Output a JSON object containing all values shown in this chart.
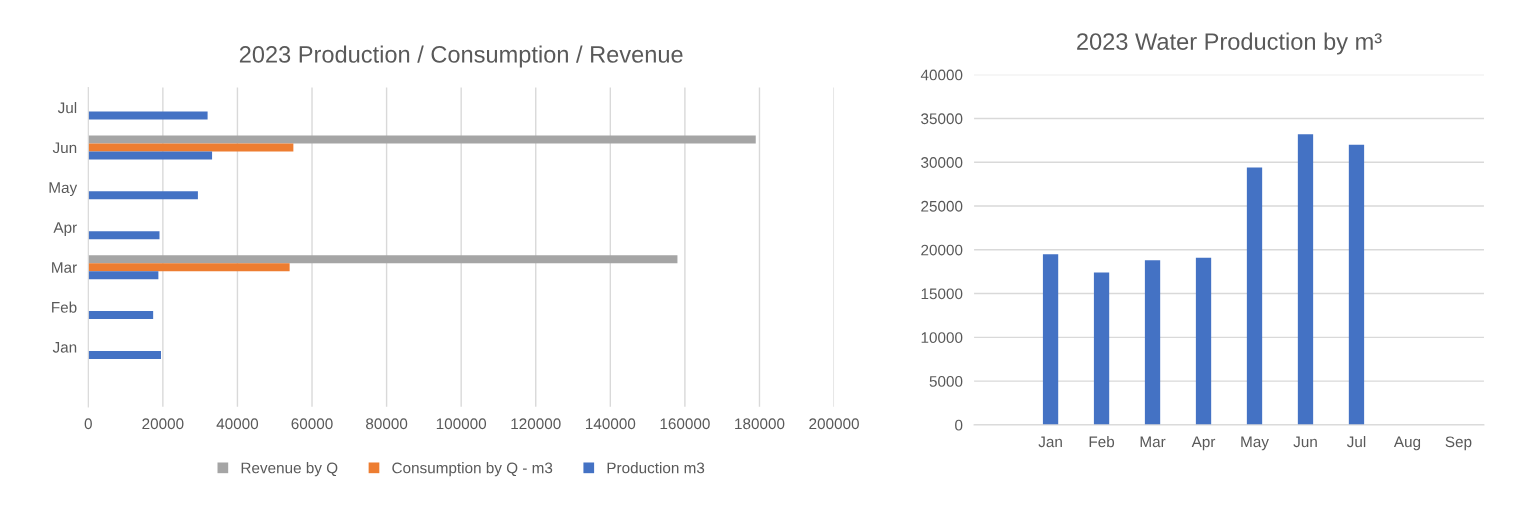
{
  "chart_data": [
    {
      "type": "bar",
      "orientation": "horizontal",
      "title": "2023 Production / Consumption / Revenue",
      "categories": [
        "Jul",
        "Jun",
        "May",
        "Apr",
        "Mar",
        "Feb",
        "Jan",
        null
      ],
      "series": [
        {
          "name": "Revenue by Q",
          "color": "#a5a5a5",
          "values": [
            null,
            179000,
            null,
            null,
            158000,
            null,
            null,
            null
          ]
        },
        {
          "name": "Consumption by Q - m3",
          "color": "#ed7d31",
          "values": [
            null,
            55000,
            null,
            null,
            54000,
            null,
            null,
            null
          ]
        },
        {
          "name": "Production m3",
          "color": "#4472c4",
          "values": [
            32000,
            33200,
            29400,
            19100,
            18800,
            17400,
            19500,
            null
          ]
        }
      ],
      "xlim": [
        0,
        200000
      ],
      "xticks": [
        0,
        20000,
        40000,
        60000,
        80000,
        100000,
        120000,
        140000,
        160000,
        180000,
        200000
      ],
      "grid": "x",
      "legend": "bottom"
    },
    {
      "type": "bar",
      "title": "2023 Water Production by m³",
      "categories": [
        null,
        "Jan",
        "Feb",
        "Mar",
        "Apr",
        "May",
        "Jun",
        "Jul",
        "Aug",
        "Sep"
      ],
      "series": [
        {
          "color": "#4472c4",
          "values": [
            null,
            19500,
            17400,
            18800,
            19100,
            29400,
            33200,
            32000,
            null,
            null
          ]
        }
      ],
      "ylim": [
        0,
        40000
      ],
      "yticks": [
        0,
        5000,
        10000,
        15000,
        20000,
        25000,
        30000,
        35000,
        40000
      ],
      "grid": "y"
    }
  ]
}
